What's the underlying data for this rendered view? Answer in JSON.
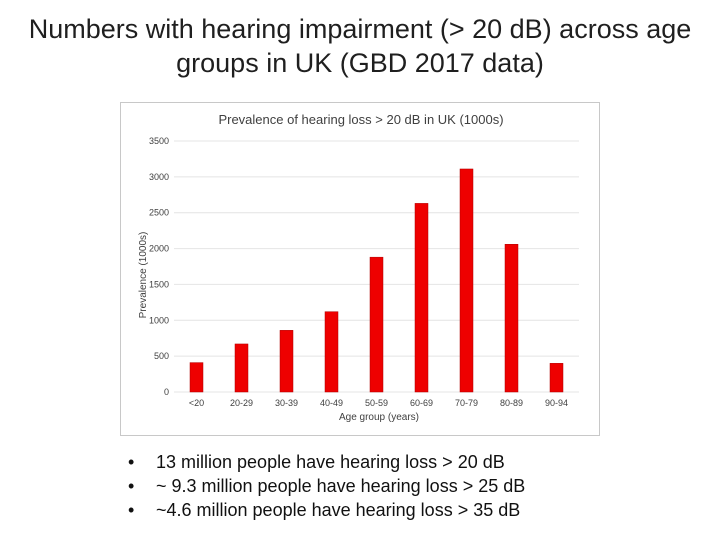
{
  "slide": {
    "title": "Numbers with hearing impairment (> 20 dB) across age groups in UK (GBD 2017 data)"
  },
  "chart_data": {
    "type": "bar",
    "title": "Prevalence of hearing loss > 20 dB in UK (1000s)",
    "xlabel": "Age group (years)",
    "ylabel": "Prevalence (1000s)",
    "categories": [
      "<20",
      "20-29",
      "30-39",
      "40-49",
      "50-59",
      "60-69",
      "70-79",
      "80-89",
      "90-94"
    ],
    "values": [
      410,
      670,
      860,
      1120,
      1880,
      2630,
      3110,
      2060,
      400
    ],
    "ylim": [
      0,
      3500
    ],
    "yticks": [
      0,
      500,
      1000,
      1500,
      2000,
      2500,
      3000,
      3500
    ],
    "grid": true,
    "legend": "none",
    "bar_color": "#ee0000"
  },
  "bullets": [
    {
      "mark": "•",
      "text": "13 million people have hearing loss > 20 dB"
    },
    {
      "mark": "•",
      "text": "~ 9.3 million people have hearing loss > 25 dB"
    },
    {
      "mark": "•",
      "text": "~4.6 million people have hearing loss > 35 dB"
    }
  ]
}
